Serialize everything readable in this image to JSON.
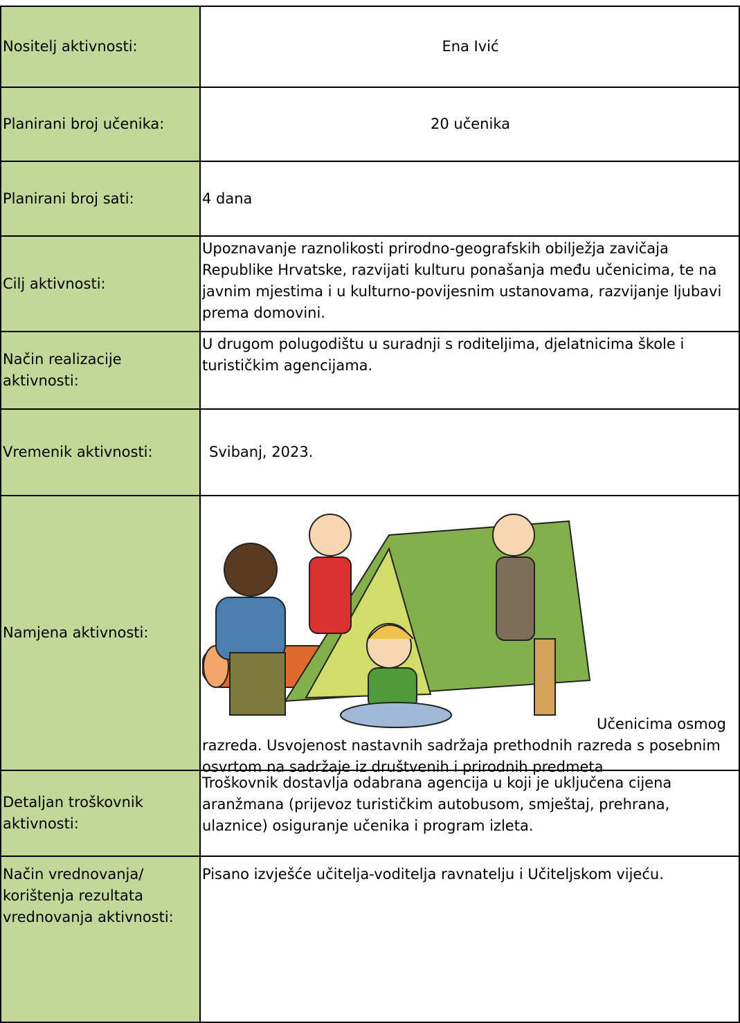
{
  "table": {
    "rows": [
      [
        "Nositelj aktivnosti:",
        "Ena Ivić"
      ],
      [
        "Planirani broj učenika:",
        "20 učenika"
      ],
      [
        "Planirani broj sati:",
        "4 dana"
      ],
      [
        "Cilj aktivnosti:",
        "Upoznavanje raznolikosti prirodno-geografskih obilježja zavičaja Republike Hrvatske, razvijati kulturu ponašanja među učenicima, te na javnim mjestima i u kulturno-povijesnim ustanovama, razvijanje ljubavi prema domovini."
      ],
      [
        "Način realizacije aktivnosti:",
        "U drugom polugodištu u suradnji s roditeljima, djelatnicima škole i turističkim agencijama."
      ],
      [
        "Vremenik aktivnosti:",
        "Svibanj, 2023."
      ],
      [
        "Namjena aktivnosti:",
        "Učenicima osmog  razreda. Usvojenost nastavnih sadržaja prethodnih razreda s posebnim osvrtom na sadržaje iz društvenih i prirodnih predmeta"
      ],
      [
        "Detaljan troškovnik aktivnosti:",
        "Troškovnik dostavlja odabrana agencija u koji je uključena cijena aranžmana (prijevoz turističkim autobusom, smještaj, prehrana, ulaznice) osiguranje učenika i program izleta."
      ],
      [
        "Način vrednovanja/ korištenja rezultata vrednovanja aktivnosti:",
        "Pisano izvješće učitelja-voditelja ravnatelju i Učiteljskom vijeću."
      ]
    ]
  }
}
